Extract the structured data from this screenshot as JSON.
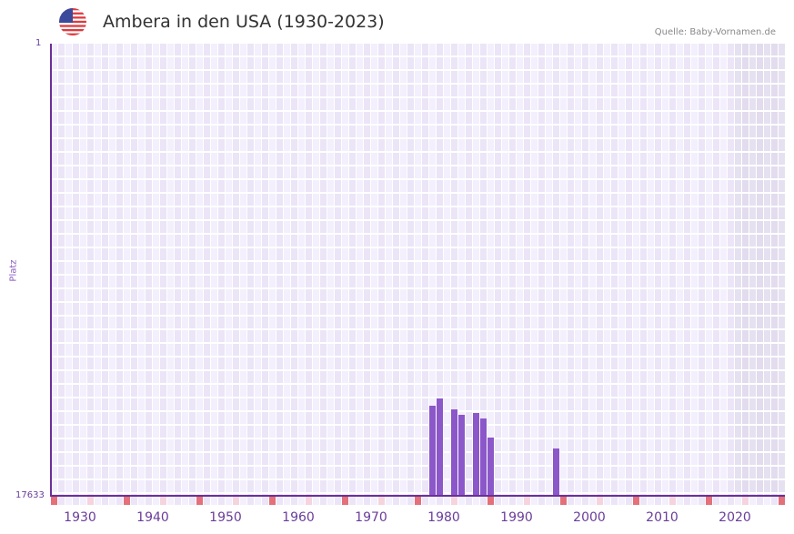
{
  "header": {
    "flag_icon": "us-flag-icon",
    "title": "Ambera in den USA (1930-2023)",
    "source": "Quelle: Baby-Vornamen.de"
  },
  "axis": {
    "y_top_label": "1",
    "y_bottom_label": "17633",
    "y_title": "Platz",
    "x_labels": [
      "1930",
      "1940",
      "1950",
      "1960",
      "1970",
      "1980",
      "1990",
      "2000",
      "2010",
      "2020"
    ]
  },
  "colors": {
    "bar": "#8b57c9",
    "axis": "#6a2f9a",
    "grid_a": "#f3effc",
    "grid_b": "#ebe5f7",
    "future_shade": "#e2dcee",
    "marker_strong": "#e3707a",
    "marker_light": "#f5d4de"
  },
  "chart_data": {
    "type": "bar",
    "title": "Ambera in den USA (1930-2023)",
    "xlabel": "",
    "ylabel": "Platz",
    "ylim": [
      17633,
      1
    ],
    "y_inverted": true,
    "x_range": [
      1928,
      2028
    ],
    "grid": true,
    "x": [
      1980,
      1981,
      1983,
      1984,
      1986,
      1987,
      1988,
      1997
    ],
    "values": [
      14120,
      13836,
      14262,
      14475,
      14404,
      14617,
      15362,
      15788
    ],
    "tick_labels_x": [
      "1930",
      "1940",
      "1950",
      "1960",
      "1970",
      "1980",
      "1990",
      "2000",
      "2010",
      "2020"
    ],
    "tick_labels_y": [
      "1",
      "17633"
    ],
    "annotations": [
      "Quelle: Baby-Vornamen.de"
    ]
  }
}
